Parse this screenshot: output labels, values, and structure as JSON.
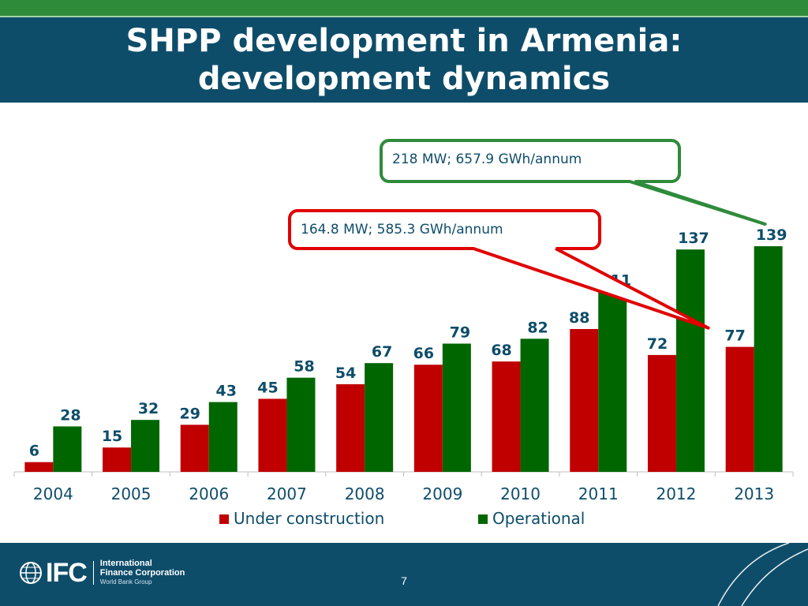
{
  "slide": {
    "title_line1": "SHPP development in Armenia:",
    "title_line2": "development dynamics",
    "page_number": "7"
  },
  "logo": {
    "mark": "IFC",
    "line1": "International",
    "line2": "Finance Corporation",
    "line3": "World Bank Group",
    "icon": "globe-icon"
  },
  "colors": {
    "header_bg": "#0e4d6a",
    "top_stripe": "#2e8b3a",
    "under_construction": "#c00000",
    "operational": "#006600"
  },
  "chart_data": {
    "type": "bar",
    "categories": [
      "2004",
      "2005",
      "2006",
      "2007",
      "2008",
      "2009",
      "2010",
      "2011",
      "2012",
      "2013"
    ],
    "series": [
      {
        "name": "Under construction",
        "color": "#c00000",
        "values": [
          6,
          15,
          29,
          45,
          54,
          66,
          68,
          88,
          72,
          77
        ]
      },
      {
        "name": "Operational",
        "color": "#006600",
        "values": [
          28,
          32,
          43,
          58,
          67,
          79,
          82,
          111,
          137,
          139
        ]
      }
    ],
    "ylim": [
      0,
      140
    ],
    "grid": false,
    "legend": "bottom",
    "data_labels": true,
    "callouts": [
      {
        "text": "218 MW; 657.9 GWh/annum",
        "color": "#2e8b3a",
        "target_category": "2013",
        "target_series": 1
      },
      {
        "text": "164.8 MW; 585.3 GWh/annum",
        "color": "#e00000",
        "target_category": "2013",
        "target_series": 0
      }
    ]
  }
}
